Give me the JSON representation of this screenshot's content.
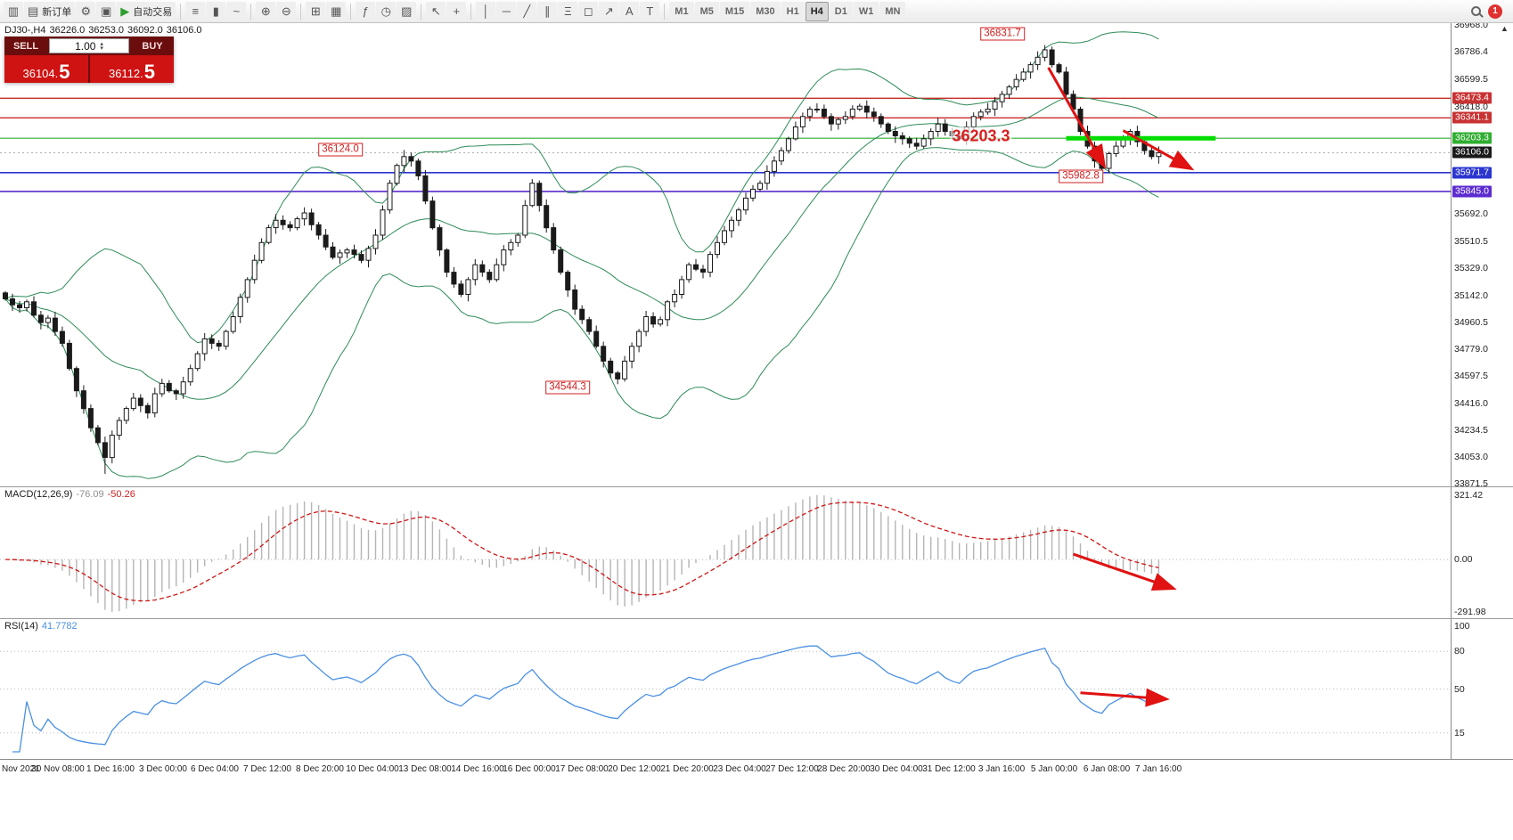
{
  "toolbar": {
    "buttons": [
      {
        "name": "new-chart-button",
        "glyph": "▥"
      },
      {
        "name": "new-order-button",
        "glyph": "▤",
        "label": "新订单"
      },
      {
        "name": "script-button",
        "glyph": "⚙"
      },
      {
        "name": "chart-profile-button",
        "glyph": "▣"
      },
      {
        "name": "auto-trading-button",
        "glyph": "▶",
        "glyph_color": "#2e9e2e",
        "label": "自动交易"
      },
      {
        "sep": true
      },
      {
        "name": "bar-chart-button",
        "glyph": "≡"
      },
      {
        "name": "candlestick-chart-button",
        "glyph": "▮"
      },
      {
        "name": "line-chart-button",
        "glyph": "~"
      },
      {
        "sep": true
      },
      {
        "name": "zoom-in-button",
        "glyph": "⊕"
      },
      {
        "name": "zoom-out-button",
        "glyph": "⊖"
      },
      {
        "sep": true
      },
      {
        "name": "tile-windows-button",
        "glyph": "⊞"
      },
      {
        "name": "auto-arrange-button",
        "glyph": "▦"
      },
      {
        "sep": true
      },
      {
        "name": "indicators-button",
        "glyph": "ƒ"
      },
      {
        "name": "periods-button",
        "glyph": "◷"
      },
      {
        "name": "templates-button",
        "glyph": "▨"
      },
      {
        "sep": true
      },
      {
        "name": "cursor-button",
        "glyph": "↖"
      },
      {
        "name": "crosshair-button",
        "glyph": "+"
      },
      {
        "sep": true
      },
      {
        "name": "vertical-line-button",
        "glyph": "│"
      },
      {
        "name": "horizontal-line-button",
        "glyph": "─"
      },
      {
        "name": "trendline-button",
        "glyph": "╱"
      },
      {
        "name": "channel-button",
        "glyph": "∥"
      },
      {
        "name": "fibonacci-button",
        "glyph": "Ξ"
      },
      {
        "name": "shapes-button",
        "glyph": "◻"
      },
      {
        "name": "arrow-tool-button",
        "glyph": "↗"
      },
      {
        "name": "text-tool-button",
        "glyph": "A"
      },
      {
        "name": "text-label-button",
        "glyph": "T"
      },
      {
        "sep": true
      }
    ],
    "timeframes": [
      "M1",
      "M5",
      "M15",
      "M30",
      "H1",
      "H4",
      "D1",
      "W1",
      "MN"
    ],
    "active_timeframe": "H4",
    "notification_count": "1"
  },
  "icons": {
    "volume_up": "▴",
    "volume_down": "▾",
    "axis_scroll_up": "▲"
  },
  "chart": {
    "ohlc": {
      "symbol_period": "DJ30-,H4",
      "open": "36226.0",
      "high": "36253.0",
      "low": "36092.0",
      "close": "36106.0"
    },
    "trade_panel": {
      "sell_label": "SELL",
      "buy_label": "BUY",
      "volume": "1.00",
      "decimal_sep": ".",
      "sell_price": "36104.5",
      "buy_price": "36112.5",
      "sell_price_main": "36104",
      "sell_price_frac": "5",
      "buy_price_main": "36112",
      "buy_price_frac": "5"
    },
    "price_axis": {
      "ticks": [
        "36968.0",
        "36786.4",
        "36599.5",
        "36418.0",
        "35692.0",
        "35510.5",
        "35329.0",
        "35142.0",
        "34960.5",
        "34779.0",
        "34597.5",
        "34416.0",
        "34234.5",
        "34053.0",
        "33871.5"
      ],
      "highlighted": [
        {
          "value": "36473.4",
          "bg": "#c83232"
        },
        {
          "value": "36341.1",
          "bg": "#c83232"
        },
        {
          "value": "36203.3",
          "bg": "#2fae2f"
        },
        {
          "value": "36106.0",
          "bg": "#1a1a1a"
        },
        {
          "value": "35971.7",
          "bg": "#2b35cf"
        },
        {
          "value": "35845.0",
          "bg": "#5b2bcf"
        }
      ]
    },
    "levels": [
      {
        "price": 36473.4,
        "color": "#cc2a2a",
        "width": 1.3
      },
      {
        "price": 36341.1,
        "color": "#cc2a2a",
        "width": 1.3
      },
      {
        "price": 36203.3,
        "color": "#2fae2f",
        "width": 1.2
      },
      {
        "price": 35971.7,
        "color": "#2b35cf",
        "width": 1.6
      },
      {
        "price": 35845.0,
        "color": "#5b2bcf",
        "width": 1.6
      }
    ],
    "current_price_line": {
      "price": 36106.0,
      "color": "#aaaaaa"
    },
    "annotations": {
      "callouts": [
        {
          "text": "36831.7",
          "bar": 140,
          "price": 36905
        },
        {
          "text": "36124.0",
          "bar": 47,
          "price": 36124
        },
        {
          "text": "34544.3",
          "bar": 79,
          "price": 34520
        },
        {
          "text": "35982.8",
          "bar": 151,
          "price": 35945
        }
      ],
      "big_label": {
        "text": "36203.3",
        "bar": 137,
        "price": 36218
      },
      "green_segment": {
        "price": 36203.3,
        "from_bar": 149,
        "to_bar": 170,
        "color": "#00dd00"
      },
      "arrows": [
        {
          "from_bar": 146.5,
          "from_price": 36680,
          "to_bar": 154.3,
          "to_price": 36020
        },
        {
          "from_bar": 157.0,
          "from_price": 36255,
          "to_bar": 166.5,
          "to_price": 36000
        }
      ]
    }
  },
  "macd": {
    "title": "MACD(12,26,9)",
    "value_main": "-76.09",
    "value_signal": "-50.26",
    "axis": [
      "321.42",
      "0.00",
      "-291.98"
    ],
    "arrow": {
      "from_bar": 150,
      "from_value": 25,
      "to_bar": 164,
      "to_value": -135
    }
  },
  "rsi": {
    "title": "RSI(14)",
    "value": "41.7782",
    "axis": [
      "100",
      "80",
      "50",
      "15"
    ],
    "levels": [
      80,
      50,
      15
    ],
    "arrow": {
      "from_bar": 151,
      "from_value": 47,
      "to_bar": 163,
      "to_value": 42
    }
  },
  "time_axis": {
    "labels": [
      "Nov 2021",
      "30 Nov 08:00",
      "1 Dec 16:00",
      "3 Dec 00:00",
      "6 Dec 04:00",
      "7 Dec 12:00",
      "8 Dec 20:00",
      "10 Dec 04:00",
      "13 Dec 08:00",
      "14 Dec 16:00",
      "16 Dec 00:00",
      "17 Dec 08:00",
      "20 Dec 12:00",
      "21 Dec 20:00",
      "23 Dec 04:00",
      "27 Dec 12:00",
      "28 Dec 20:00",
      "30 Dec 04:00",
      "31 Dec 12:00",
      "3 Jan 16:00",
      "5 Jan 00:00",
      "6 Jan 08:00",
      "7 Jan 16:00"
    ]
  },
  "chart_data": {
    "type": "candlestick",
    "symbol": "DJ30-",
    "timeframe": "H4",
    "price_range": {
      "max": 36980,
      "min": 33855
    },
    "first_open": 35160,
    "closes": [
      35120,
      35080,
      35060,
      35100,
      35010,
      34960,
      34990,
      34900,
      34820,
      34650,
      34500,
      34380,
      34250,
      34150,
      34050,
      34200,
      34300,
      34380,
      34450,
      34400,
      34350,
      34480,
      34550,
      34500,
      34480,
      34560,
      34650,
      34750,
      34850,
      34820,
      34800,
      34900,
      35000,
      35130,
      35250,
      35380,
      35500,
      35600,
      35650,
      35620,
      35600,
      35660,
      35700,
      35620,
      35550,
      35470,
      35400,
      35430,
      35450,
      35420,
      35380,
      35460,
      35550,
      35720,
      35900,
      36020,
      36080,
      36050,
      35950,
      35780,
      35600,
      35450,
      35300,
      35220,
      35150,
      35250,
      35350,
      35300,
      35250,
      35350,
      35450,
      35500,
      35550,
      35750,
      35900,
      35750,
      35600,
      35450,
      35300,
      35180,
      35050,
      34980,
      34900,
      34800,
      34700,
      34620,
      34580,
      34700,
      34800,
      34900,
      35000,
      34950,
      34980,
      35100,
      35150,
      35250,
      35350,
      35320,
      35300,
      35420,
      35500,
      35580,
      35650,
      35720,
      35800,
      35860,
      35900,
      35980,
      36050,
      36120,
      36200,
      36280,
      36350,
      36400,
      36400,
      36350,
      36300,
      36330,
      36350,
      36400,
      36420,
      36380,
      36350,
      36300,
      36250,
      36220,
      36200,
      36170,
      36150,
      36200,
      36250,
      36300,
      36250,
      36220,
      36200,
      36280,
      36350,
      36380,
      36400,
      36450,
      36500,
      36550,
      36600,
      36650,
      36700,
      36750,
      36800,
      36700,
      36650,
      36500,
      36400,
      36250,
      36150,
      36050,
      36000,
      36100,
      36150,
      36200,
      36250,
      36180,
      36120,
      36080,
      36106
    ],
    "wick_overrides": {
      "14": {
        "low": 33940
      },
      "56": {
        "high": 36124.0
      },
      "86": {
        "low": 34544.3
      },
      "146": {
        "high": 36831.7
      },
      "154": {
        "low": 35982.8
      }
    },
    "indicators": {
      "bollinger": {
        "period": 20,
        "deviation": 2,
        "color": "#2e8b57"
      },
      "macd": {
        "fast": 12,
        "slow": 26,
        "signal": 9
      },
      "rsi": {
        "period": 14
      }
    }
  }
}
